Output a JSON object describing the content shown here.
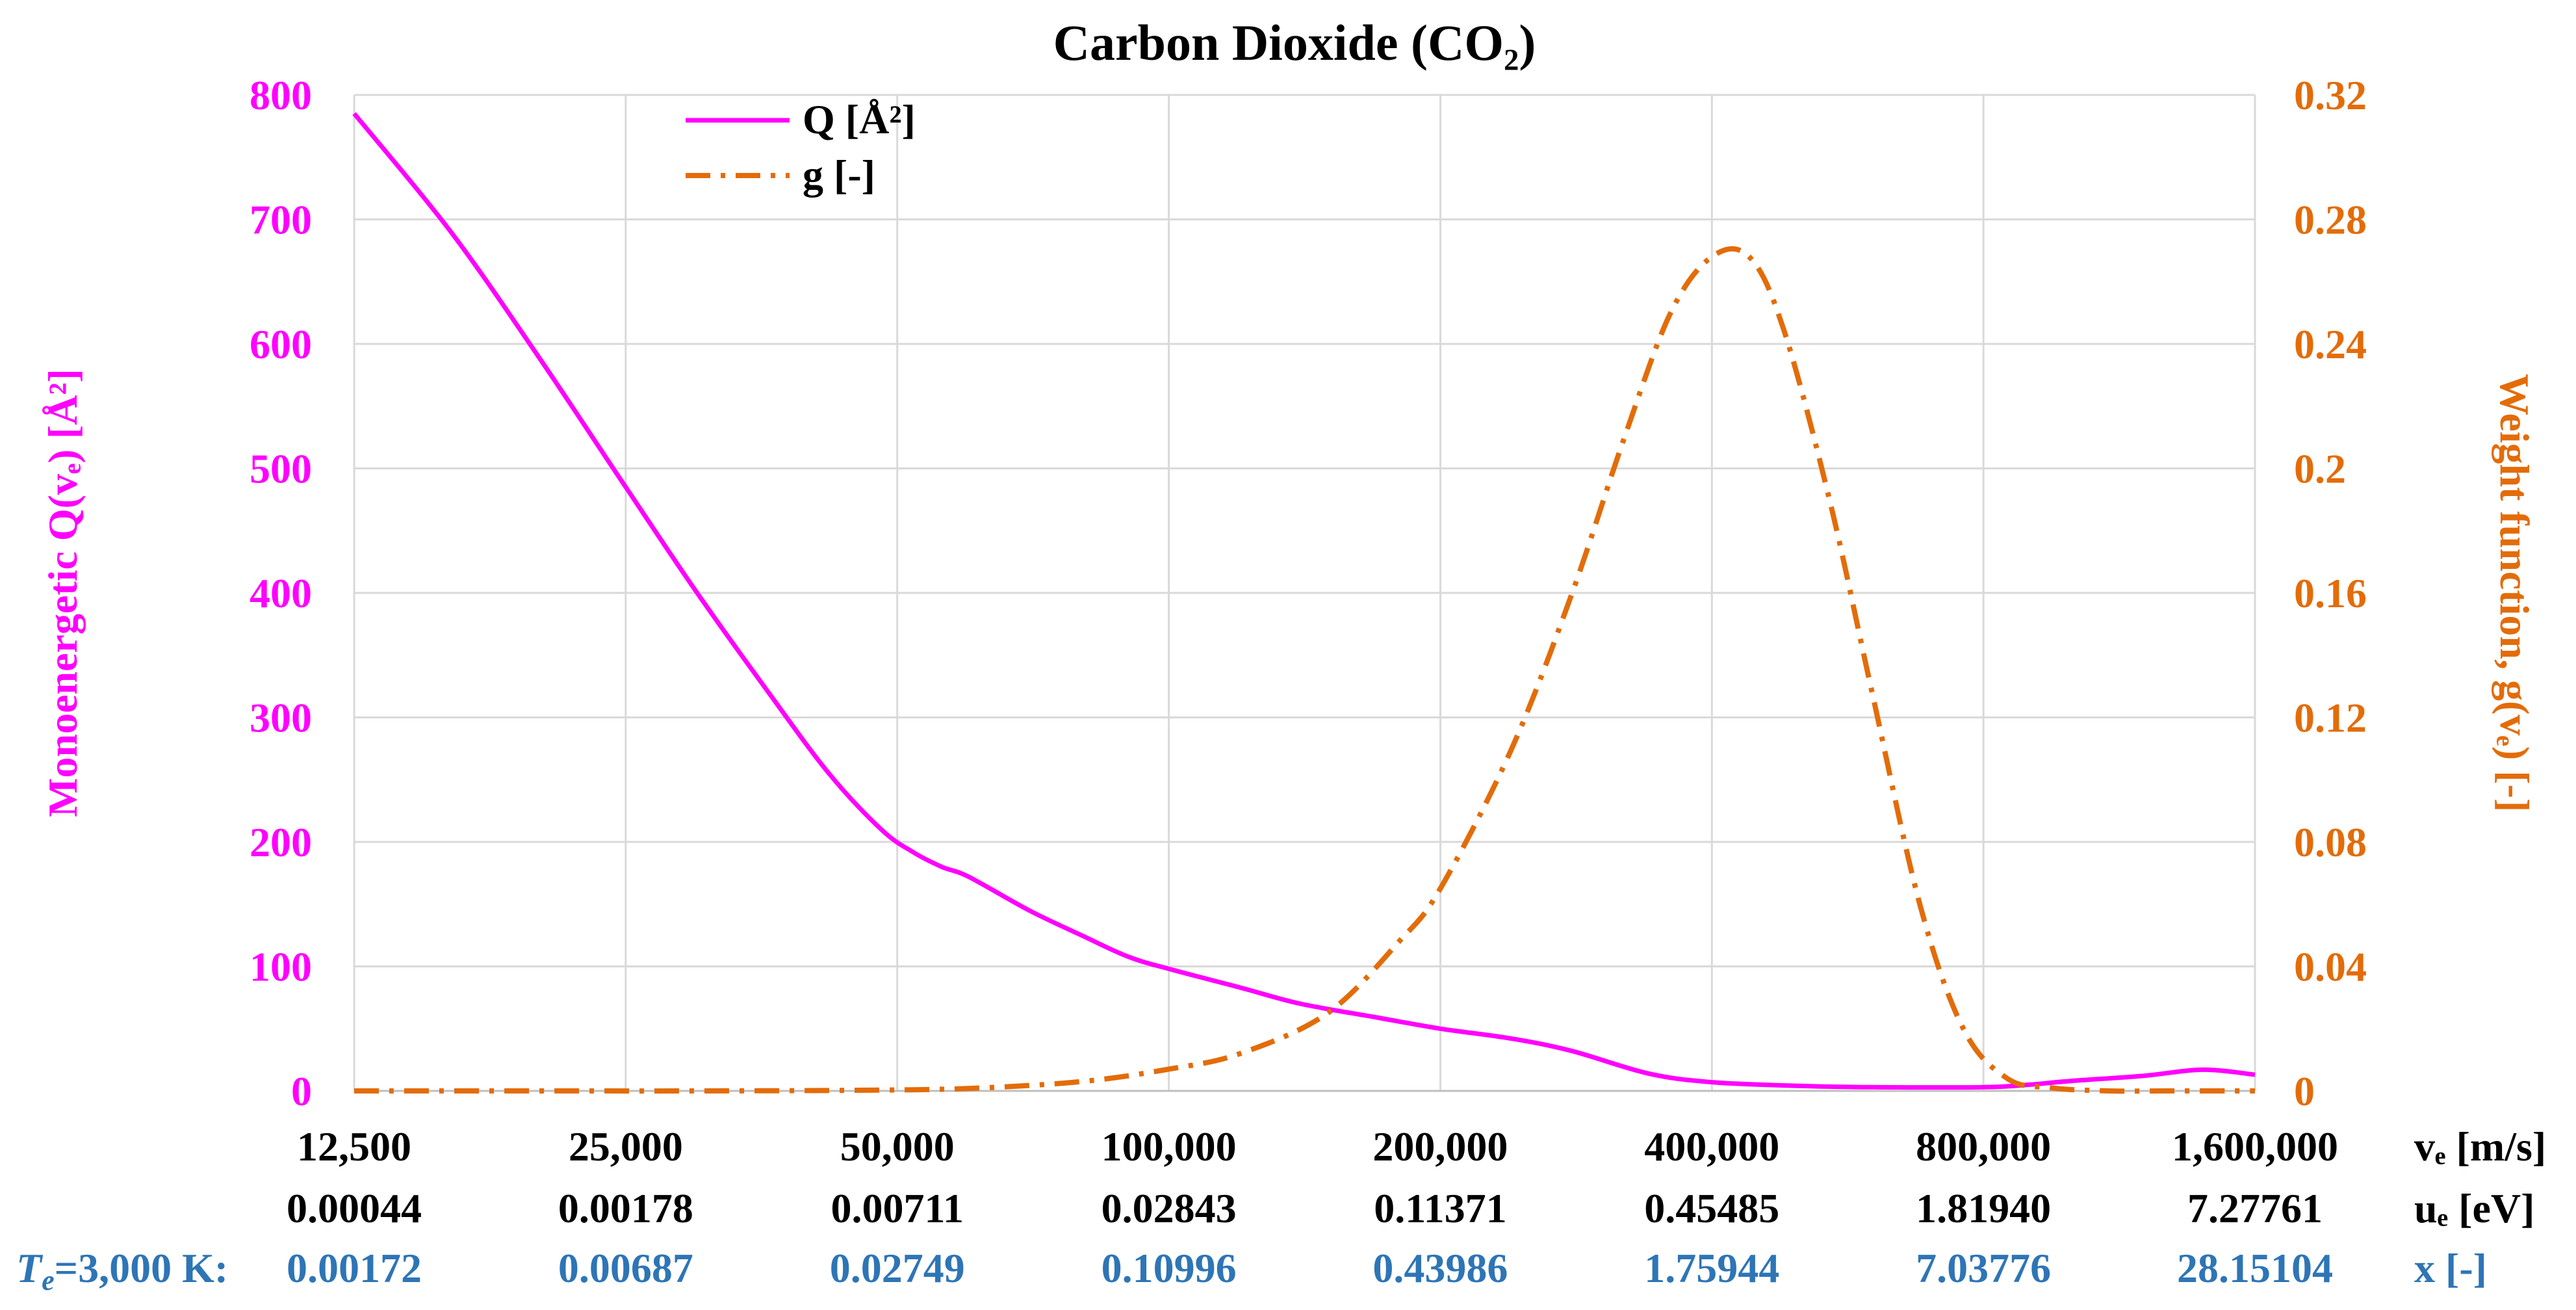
{
  "chart_data": {
    "type": "line",
    "title": "Carbon Dioxide (CO₂)",
    "y_left": {
      "label": "Monoenergetic Q(vₑ) [Å²]",
      "range": [
        0,
        800
      ],
      "ticks": [
        "0",
        "100",
        "200",
        "300",
        "400",
        "500",
        "600",
        "700",
        "800"
      ],
      "color": "#ff00ff"
    },
    "y_right": {
      "label": "Weight function, g(vₑ) [-]",
      "range": [
        0,
        0.32
      ],
      "ticks": [
        "0",
        "0.04",
        "0.08",
        "0.12",
        "0.16",
        "0.2",
        "0.24",
        "0.28",
        "0.32"
      ],
      "color": "#e36c09"
    },
    "x_scale": "log2",
    "x_range": [
      12500,
      1600000
    ],
    "x_rows": [
      {
        "name": "ve",
        "color": "#000000",
        "ticks": [
          "12,500",
          "25,000",
          "50,000",
          "100,000",
          "200,000",
          "400,000",
          "800,000",
          "1,600,000"
        ],
        "unit": "vₑ [m/s]"
      },
      {
        "name": "ue",
        "color": "#000000",
        "ticks": [
          "0.00044",
          "0.00178",
          "0.00711",
          "0.02843",
          "0.11371",
          "0.45485",
          "1.81940",
          "7.27761"
        ],
        "unit": "uₑ [eV]"
      },
      {
        "name": "x",
        "color": "#2e75b6",
        "prefix_symbol": "T",
        "prefix_subscript": "e",
        "prefix_rest": "=3,000 K:",
        "ticks": [
          "0.00172",
          "0.00687",
          "0.02749",
          "0.10996",
          "0.43986",
          "1.75944",
          "7.03776",
          "28.15104"
        ],
        "unit": "x [-]"
      }
    ],
    "legend": [
      "Q [Å²]",
      "g [-]"
    ],
    "series": [
      {
        "name": "Q [Å²]",
        "axis": "left",
        "color": "#ff00ff",
        "style": "solid",
        "x": [
          12500,
          16000,
          20000,
          25000,
          30000,
          36000,
          42000,
          48000,
          52000,
          56000,
          60000,
          70000,
          80000,
          90000,
          100000,
          120000,
          140000,
          170000,
          200000,
          240000,
          280000,
          340000,
          400000,
          500000,
          600000,
          800000,
          900000,
          1000000,
          1200000,
          1400000,
          1600000
        ],
        "values": [
          785,
          690,
          590,
          485,
          400,
          320,
          255,
          210,
          192,
          180,
          172,
          145,
          125,
          108,
          98,
          83,
          70,
          59,
          50,
          42,
          32,
          14,
          7,
          4,
          3,
          3,
          5,
          8,
          12,
          17,
          13
        ]
      },
      {
        "name": "g [-]",
        "axis": "right",
        "color": "#e36c09",
        "style": "dashdot",
        "x": [
          12500,
          20000,
          30000,
          45000,
          60000,
          80000,
          100000,
          120000,
          150000,
          180000,
          200000,
          240000,
          280000,
          320000,
          360000,
          400000,
          440000,
          480000,
          540000,
          600000,
          680000,
          760000,
          850000,
          950000,
          1100000,
          1300000,
          1600000
        ],
        "values": [
          0,
          0,
          0,
          0.0002,
          0.0008,
          0.003,
          0.007,
          0.012,
          0.025,
          0.048,
          0.065,
          0.11,
          0.16,
          0.21,
          0.25,
          0.268,
          0.268,
          0.245,
          0.19,
          0.13,
          0.06,
          0.02,
          0.004,
          0.001,
          0,
          0,
          0
        ]
      }
    ]
  }
}
